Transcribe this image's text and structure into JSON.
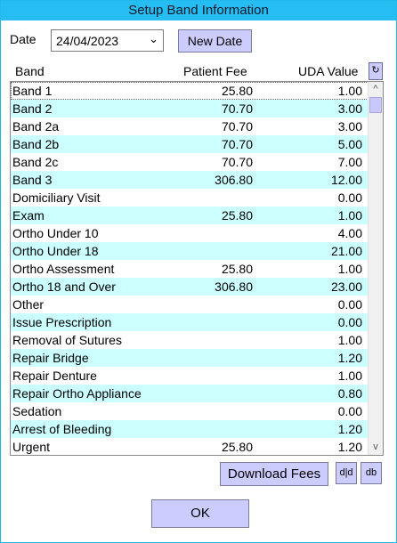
{
  "window": {
    "title": "Setup Band Information"
  },
  "date": {
    "label": "Date",
    "value": "24/04/2023",
    "chevron": "⌄"
  },
  "buttons": {
    "new_date": "New Date",
    "download_fees": "Download Fees",
    "small1_glyph": "d|d",
    "small2_glyph": "db",
    "ok": "OK",
    "refresh_glyph": "↻"
  },
  "table": {
    "columns": {
      "band": "Band",
      "fee": "Patient Fee",
      "uda": "UDA Value"
    },
    "rows": [
      {
        "band": "Band 1",
        "fee": "25.80",
        "uda": "1.00"
      },
      {
        "band": "Band 2",
        "fee": "70.70",
        "uda": "3.00"
      },
      {
        "band": "Band 2a",
        "fee": "70.70",
        "uda": "3.00"
      },
      {
        "band": "Band 2b",
        "fee": "70.70",
        "uda": "5.00"
      },
      {
        "band": "Band 2c",
        "fee": "70.70",
        "uda": "7.00"
      },
      {
        "band": "Band 3",
        "fee": "306.80",
        "uda": "12.00"
      },
      {
        "band": "Domiciliary Visit",
        "fee": "",
        "uda": "0.00"
      },
      {
        "band": "Exam",
        "fee": "25.80",
        "uda": "1.00"
      },
      {
        "band": "Ortho Under 10",
        "fee": "",
        "uda": "4.00"
      },
      {
        "band": "Ortho Under 18",
        "fee": "",
        "uda": "21.00"
      },
      {
        "band": "Ortho Assessment",
        "fee": "25.80",
        "uda": "1.00"
      },
      {
        "band": "Ortho 18 and Over",
        "fee": "306.80",
        "uda": "23.00"
      },
      {
        "band": "Other",
        "fee": "",
        "uda": "0.00"
      },
      {
        "band": "Issue Prescription",
        "fee": "",
        "uda": "0.00"
      },
      {
        "band": "Removal of Sutures",
        "fee": "",
        "uda": "1.00"
      },
      {
        "band": "Repair Bridge",
        "fee": "",
        "uda": "1.20"
      },
      {
        "band": "Repair Denture",
        "fee": "",
        "uda": "1.00"
      },
      {
        "band": "Repair Ortho Appliance",
        "fee": "",
        "uda": "0.80"
      },
      {
        "band": "Sedation",
        "fee": "",
        "uda": "0.00"
      },
      {
        "band": "Arrest of Bleeding",
        "fee": "",
        "uda": "1.20"
      },
      {
        "band": "Urgent",
        "fee": "25.80",
        "uda": "1.20"
      }
    ]
  },
  "scrollbar": {
    "up": "^",
    "down": "v"
  },
  "colors": {
    "title_bar": "#25bdf2",
    "alt_row": "#ccffff",
    "button": "#ccccff"
  }
}
